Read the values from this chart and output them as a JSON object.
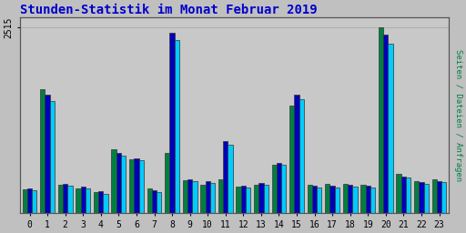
{
  "title": "Stunden-Statistik im Monat Februar 2019",
  "title_color": "#0000cc",
  "title_fontsize": 10,
  "ylabel": "Seiten / Dateien / Anfragen",
  "ylabel_color": "#008040",
  "background_color": "#c0c0c0",
  "plot_bg_color": "#c8c8c8",
  "hours": [
    0,
    1,
    2,
    3,
    4,
    5,
    6,
    7,
    8,
    9,
    10,
    11,
    12,
    13,
    14,
    15,
    16,
    17,
    18,
    19,
    20,
    21,
    22,
    23
  ],
  "seiten": [
    320,
    1680,
    380,
    340,
    280,
    870,
    730,
    330,
    820,
    450,
    390,
    460,
    360,
    390,
    650,
    1460,
    390,
    400,
    400,
    380,
    2515,
    530,
    430,
    460
  ],
  "dateien": [
    340,
    1600,
    400,
    360,
    295,
    820,
    745,
    310,
    2440,
    460,
    430,
    980,
    375,
    410,
    680,
    1600,
    375,
    375,
    390,
    375,
    2420,
    500,
    420,
    440
  ],
  "anfragen": [
    310,
    1520,
    370,
    330,
    265,
    780,
    715,
    285,
    2350,
    435,
    415,
    930,
    350,
    385,
    650,
    1540,
    350,
    350,
    365,
    350,
    2300,
    480,
    400,
    420
  ],
  "color_seiten": "#008040",
  "color_dateien": "#0000bb",
  "color_anfragen": "#00ccff",
  "ylim": [
    0,
    2650
  ],
  "ytick_val": 2515,
  "grid_color": "#b0b0b0",
  "font_family": "monospace"
}
